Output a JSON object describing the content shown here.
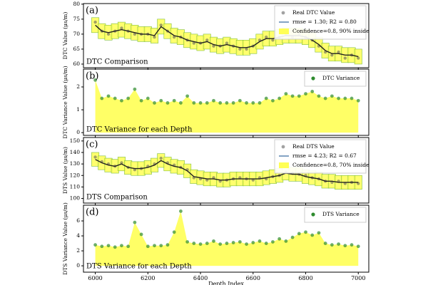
{
  "chart_data": [
    {
      "type": "line",
      "panel_label": "(a)",
      "title": "DTC Comparison",
      "ylabel": "DTC Value (μs/m)",
      "x": [
        6000,
        6025,
        6050,
        6075,
        6100,
        6125,
        6150,
        6175,
        6200,
        6225,
        6250,
        6275,
        6300,
        6325,
        6350,
        6375,
        6400,
        6425,
        6450,
        6475,
        6500,
        6525,
        6550,
        6575,
        6600,
        6625,
        6650,
        6675,
        6700,
        6725,
        6750,
        6775,
        6800,
        6825,
        6850,
        6875,
        6900,
        6925,
        6950,
        6975,
        7000
      ],
      "xlim": [
        5955,
        7040
      ],
      "xticks": [
        6000,
        6200,
        6400,
        6600,
        6800,
        7000
      ],
      "ylim": [
        58.8,
        80.2
      ],
      "yticks": [
        60,
        65,
        70,
        75,
        80
      ],
      "series": [
        {
          "name": "Real DTC Value",
          "style": "points",
          "color": "#555555",
          "values": [
            74,
            71,
            70,
            71,
            72,
            71,
            70,
            70,
            70,
            69,
            73,
            71,
            69,
            69,
            68,
            67,
            67,
            68,
            66,
            66,
            67,
            66,
            65,
            65,
            66,
            68,
            69,
            68,
            69,
            70,
            69,
            70,
            69,
            68,
            66,
            64,
            63,
            64,
            62,
            63,
            62
          ]
        },
        {
          "name": "rmse = 1.30; R2 = 0.80",
          "style": "line",
          "color": "#5b84b1",
          "values": [
            73,
            71,
            70.5,
            71,
            71.5,
            71,
            70.5,
            70,
            70,
            69.5,
            72.5,
            71,
            69.5,
            69,
            68,
            67.5,
            67,
            67.5,
            66.5,
            66,
            66.5,
            66,
            65.5,
            65.5,
            66,
            67.5,
            68.5,
            68.5,
            69,
            69.5,
            69.5,
            69.5,
            69,
            68,
            66.5,
            64.5,
            63.5,
            63.5,
            63,
            63,
            62.5
          ]
        },
        {
          "name": "Confidence=0.8, 90% inside",
          "style": "band",
          "color": "#ffff55",
          "edge": "#7fbf3f",
          "lower": [
            70.5,
            68.5,
            68,
            68.5,
            69,
            68.5,
            68,
            67.5,
            67.5,
            67,
            70,
            68.5,
            67,
            66.5,
            65.5,
            65,
            64.5,
            65,
            64,
            63.5,
            64,
            63.5,
            63,
            63,
            63.5,
            65,
            66,
            66,
            66.5,
            67,
            67,
            67,
            66.5,
            65.5,
            64,
            62,
            61,
            61,
            60.5,
            60.5,
            60
          ],
          "upper": [
            75.5,
            73.5,
            73,
            73.5,
            74,
            73.5,
            73,
            72.5,
            72.5,
            72,
            75,
            73.5,
            72,
            71.5,
            70.5,
            70,
            69.5,
            70,
            69,
            68.5,
            69,
            68.5,
            68,
            68,
            68.5,
            70,
            71,
            71,
            71.5,
            72,
            72,
            72,
            71.5,
            70.5,
            69,
            67,
            66,
            66,
            65.5,
            65.5,
            65
          ]
        }
      ]
    },
    {
      "type": "area",
      "panel_label": "(b)",
      "title": "DTC Variance for each Depth",
      "ylabel": "DTC Variance Value (μs/m)",
      "x": [
        6000,
        6025,
        6050,
        6075,
        6100,
        6125,
        6150,
        6175,
        6200,
        6225,
        6250,
        6275,
        6300,
        6325,
        6350,
        6375,
        6400,
        6425,
        6450,
        6475,
        6500,
        6525,
        6550,
        6575,
        6600,
        6625,
        6650,
        6675,
        6700,
        6725,
        6750,
        6775,
        6800,
        6825,
        6850,
        6875,
        6900,
        6925,
        6950,
        6975,
        7000
      ],
      "xlim": [
        5955,
        7040
      ],
      "xticks": [
        6000,
        6200,
        6400,
        6600,
        6800,
        7000
      ],
      "ylim": [
        -0.12,
        2.78
      ],
      "yticks": [
        0,
        1,
        2
      ],
      "series": [
        {
          "name": "DTC Variance",
          "color": "#2e8b2e",
          "fill": "#ffff66",
          "values": [
            2.3,
            1.5,
            1.6,
            1.5,
            1.4,
            1.5,
            1.9,
            1.4,
            1.5,
            1.3,
            1.4,
            1.3,
            1.4,
            1.3,
            1.6,
            1.3,
            1.3,
            1.3,
            1.4,
            1.3,
            1.3,
            1.3,
            1.4,
            1.3,
            1.3,
            1.3,
            1.5,
            1.4,
            1.5,
            1.7,
            1.6,
            1.6,
            1.7,
            1.8,
            1.6,
            1.5,
            1.6,
            1.5,
            1.5,
            1.5,
            1.4
          ]
        }
      ]
    },
    {
      "type": "line",
      "panel_label": "(c)",
      "title": "DTS Comparison",
      "ylabel": "DTS Value (μs/m)",
      "x": [
        6000,
        6025,
        6050,
        6075,
        6100,
        6125,
        6150,
        6175,
        6200,
        6225,
        6250,
        6275,
        6300,
        6325,
        6350,
        6375,
        6400,
        6425,
        6450,
        6475,
        6500,
        6525,
        6550,
        6575,
        6600,
        6625,
        6650,
        6675,
        6700,
        6725,
        6750,
        6775,
        6800,
        6825,
        6850,
        6875,
        6900,
        6925,
        6950,
        6975,
        7000
      ],
      "xlim": [
        5955,
        7040
      ],
      "xticks": [
        6000,
        6200,
        6400,
        6600,
        6800,
        7000
      ],
      "ylim": [
        96,
        153
      ],
      "yticks": [
        100,
        110,
        120,
        130,
        140,
        150
      ],
      "series": [
        {
          "name": "Real DTS Value",
          "style": "points",
          "color": "#555555",
          "values": [
            136,
            132,
            130,
            128,
            131,
            127,
            125,
            126,
            128,
            130,
            135,
            131,
            129,
            127,
            125,
            118,
            117,
            116,
            118,
            115,
            116,
            117,
            118,
            117,
            116,
            118,
            117,
            119,
            120,
            123,
            122,
            121,
            120,
            118,
            117,
            115,
            114,
            115,
            113,
            114,
            113
          ]
        },
        {
          "name": "rmse = 4.23; R2 = 0.67",
          "style": "line",
          "color": "#5b84b1",
          "values": [
            134,
            131,
            129,
            128,
            130,
            127,
            126,
            126,
            127,
            129,
            133,
            130,
            128,
            127,
            124,
            119,
            118,
            117,
            117,
            116,
            116,
            117,
            117,
            117,
            117,
            117,
            118,
            119,
            120,
            122,
            121,
            121,
            119,
            118,
            117,
            115,
            115,
            114,
            114,
            114,
            114
          ]
        },
        {
          "name": "Confidence=0.8, 70% inside",
          "style": "band",
          "color": "#ffff55",
          "edge": "#7fbf3f",
          "lower": [
            128,
            125,
            123,
            122,
            124,
            121,
            120,
            120,
            121,
            123,
            127,
            124,
            122,
            121,
            118,
            113,
            112,
            111,
            111,
            110,
            110,
            111,
            111,
            111,
            111,
            111,
            112,
            113,
            114,
            116,
            115,
            115,
            113,
            112,
            111,
            109,
            109,
            108,
            108,
            108,
            108
          ],
          "upper": [
            140,
            137,
            135,
            134,
            136,
            133,
            132,
            132,
            133,
            135,
            139,
            136,
            134,
            133,
            130,
            125,
            124,
            123,
            123,
            122,
            122,
            123,
            123,
            123,
            123,
            123,
            124,
            125,
            126,
            128,
            127,
            127,
            125,
            124,
            123,
            121,
            121,
            120,
            120,
            120,
            120
          ]
        }
      ]
    },
    {
      "type": "area",
      "panel_label": "(d)",
      "title": "DTS Variance for each Depth",
      "ylabel": "DTS Variance Value (μs/m)",
      "xlabel": "Depth Index",
      "x": [
        6000,
        6025,
        6050,
        6075,
        6100,
        6125,
        6150,
        6175,
        6200,
        6225,
        6250,
        6275,
        6300,
        6325,
        6350,
        6375,
        6400,
        6425,
        6450,
        6475,
        6500,
        6525,
        6550,
        6575,
        6600,
        6625,
        6650,
        6675,
        6700,
        6725,
        6750,
        6775,
        6800,
        6825,
        6850,
        6875,
        6900,
        6925,
        6950,
        6975,
        7000
      ],
      "xlim": [
        5955,
        7040
      ],
      "xticks": [
        6000,
        6200,
        6400,
        6600,
        6800,
        7000
      ],
      "ylim": [
        -0.85,
        8.1
      ],
      "yticks": [
        0,
        2,
        4,
        6
      ],
      "series": [
        {
          "name": "DTS Variance",
          "color": "#2e8b2e",
          "fill": "#ffff66",
          "values": [
            2.8,
            2.6,
            2.7,
            2.5,
            2.7,
            2.6,
            5.8,
            4.2,
            2.6,
            2.7,
            2.7,
            2.8,
            4.5,
            7.3,
            3.2,
            3.0,
            2.9,
            3.0,
            3.3,
            2.9,
            3.0,
            3.1,
            3.2,
            2.9,
            3.1,
            3.3,
            3.0,
            3.2,
            3.6,
            3.3,
            3.8,
            4.3,
            4.5,
            4.1,
            4.4,
            3.0,
            2.8,
            2.9,
            2.7,
            2.8,
            2.6
          ]
        }
      ]
    }
  ]
}
